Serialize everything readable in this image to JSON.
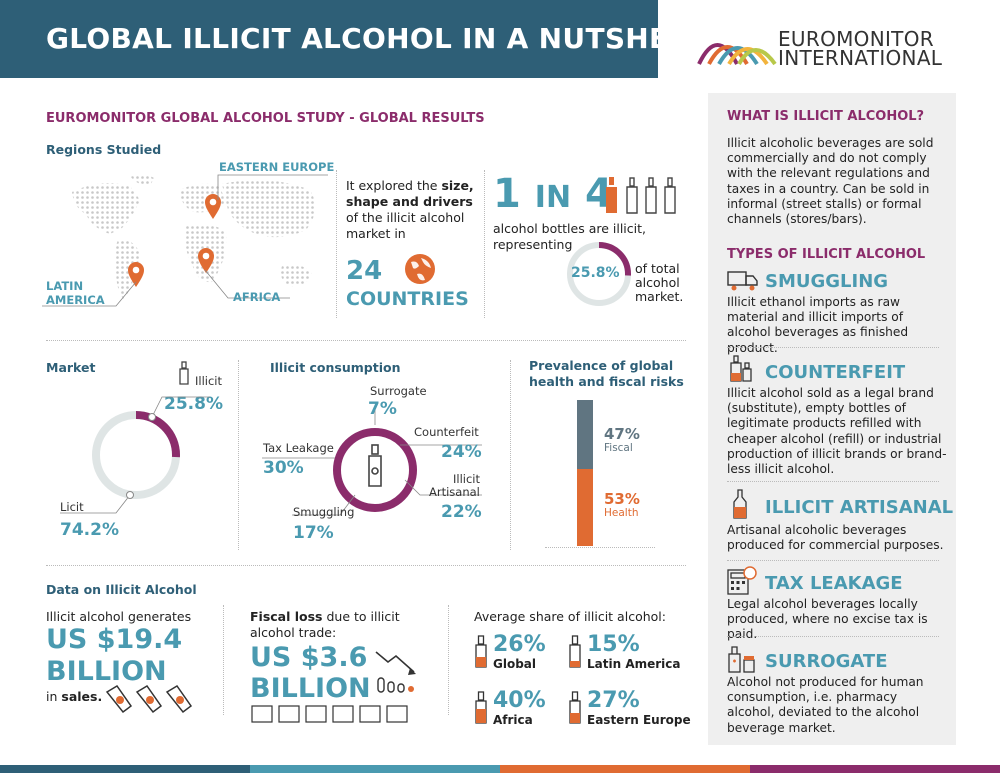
{
  "header": {
    "title": "GLOBAL ILLICIT ALCOHOL IN A NUTSHELL"
  },
  "brand": {
    "line1": "EUROMONITOR",
    "line2": "INTERNATIONAL"
  },
  "study": {
    "title": "EUROMONITOR GLOBAL ALCOHOL STUDY -  GLOBAL RESULTS",
    "regions_label": "Regions Studied",
    "regions": {
      "eastern_europe": "EASTERN EUROPE",
      "latin_america_1": "LATIN",
      "latin_america_2": "AMERICA",
      "africa": "AFRICA"
    },
    "explored_pre": "It explored the ",
    "explored_bold": "size, shape and drivers",
    "explored_post": " of the illicit alcohol market in",
    "countries_num": "24",
    "countries_label": "COUNTRIES",
    "one": "1",
    "in": "IN",
    "four": "4",
    "bottles_text": "alcohol bottles are illicit, representing",
    "share_pct": "25.8%",
    "share_value": 25.8,
    "share_of_total": "of total alcohol market."
  },
  "market": {
    "label": "Market",
    "illicit_label": "Illicit",
    "illicit_pct": "25.8%",
    "illicit_value": 25.8,
    "licit_label": "Licit",
    "licit_pct": "74.2%",
    "licit_value": 74.2
  },
  "consumption": {
    "label": "Illicit consumption",
    "surrogate_label": "Surrogate",
    "surrogate_pct": "7%",
    "counterfeit_label": "Counterfeit",
    "counterfeit_pct": "24%",
    "artisanal_label1": "Illicit",
    "artisanal_label2": "Artisanal",
    "artisanal_pct": "22%",
    "smuggling_label": "Smuggling",
    "smuggling_pct": "17%",
    "tax_label": "Tax Leakage",
    "tax_pct": "30%",
    "values": [
      7,
      24,
      22,
      17,
      30
    ]
  },
  "prevalence": {
    "title1": "Prevalence of global",
    "title2": "health and fiscal risks",
    "fiscal_pct": "47%",
    "fiscal_label": "Fiscal",
    "fiscal_value": 47,
    "health_pct": "53%",
    "health_label": "Health",
    "health_value": 53
  },
  "data_section": {
    "label": "Data on Illicit Alcohol",
    "generates": "Illicit alcohol generates",
    "sales_amount_1": "US $19.4",
    "sales_amount_2": "BILLION",
    "in_text": "in ",
    "sales_word": "sales.",
    "fiscal_bold": "Fiscal loss",
    "fiscal_text": " due to illicit alcohol trade:",
    "fiscal_amount_1": "US $3.6",
    "fiscal_amount_2": "BILLION",
    "avg_share": "Average share of illicit alcohol:",
    "shares": [
      {
        "pct": "26%",
        "label": "Global"
      },
      {
        "pct": "15%",
        "label": "Latin America"
      },
      {
        "pct": "40%",
        "label": "Africa"
      },
      {
        "pct": "27%",
        "label": "Eastern Europe"
      }
    ]
  },
  "sidebar": {
    "what_title": "WHAT IS ILLICIT ALCOHOL?",
    "what_text": "Illicit alcoholic beverages are sold commercially and do not comply with the relevant regulations and taxes in a country. Can be sold in informal (street stalls) or formal channels (stores/bars).",
    "types_title": "TYPES OF ILLICIT ALCOHOL",
    "types": [
      {
        "name": "SMUGGLING",
        "text": "Illicit ethanol imports as raw material and illicit imports of alcohol beverages as finished product."
      },
      {
        "name": "COUNTERFEIT",
        "text": "Illicit alcohol sold as a legal brand (substitute), empty bottles of legitimate products refilled with cheaper alcohol (refill) or industrial production of illicit brands or brand-less illicit alcohol."
      },
      {
        "name": "ILLICIT ARTISANAL",
        "text": "Artisanal alcoholic beverages produced for commercial purposes."
      },
      {
        "name": "TAX LEAKAGE",
        "text": "Legal alcohol beverages locally produced, where no excise tax is paid."
      },
      {
        "name": "SURROGATE",
        "text": "Alcohol not produced for human consumption, i.e. pharmacy alcohol, deviated to the alcohol beverage market."
      }
    ]
  },
  "colors": {
    "teal": "#4a9ab0",
    "purple": "#8b2c6b",
    "orange": "#e06b32",
    "navy": "#2e5f77",
    "grey": "#607581"
  }
}
